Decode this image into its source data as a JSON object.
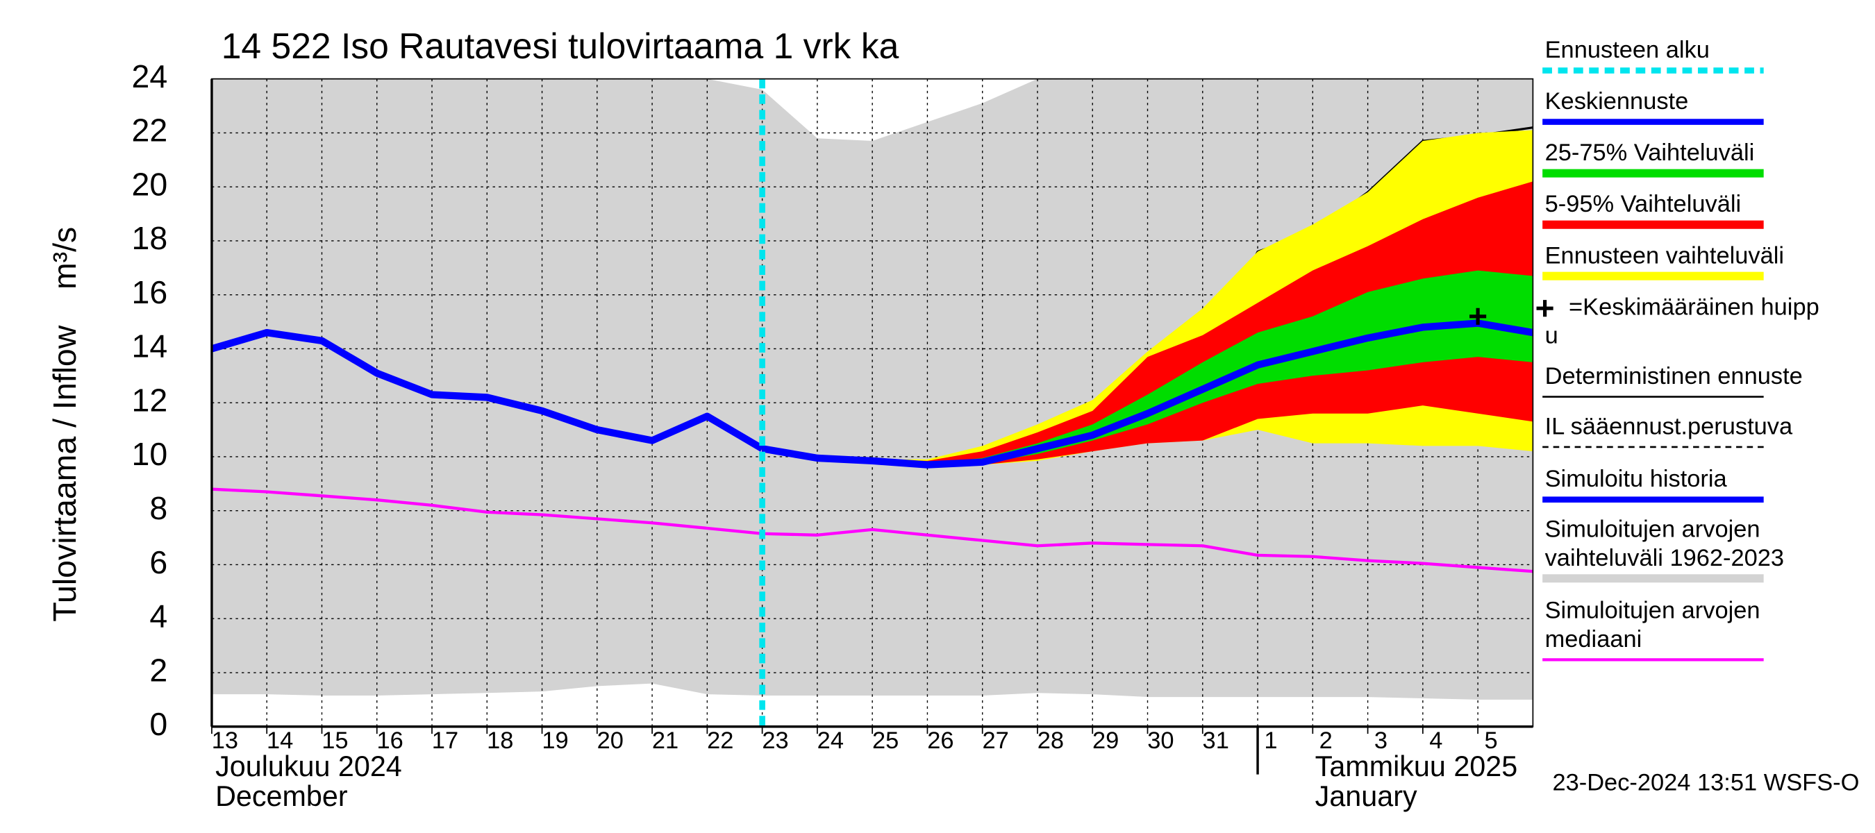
{
  "chart_data": {
    "type": "forecast",
    "title": "14 522 Iso Rautavesi tulovirtaama 1 vrk ka",
    "y_label": "Tulovirtaama / Inflow    m³/s",
    "ylim": [
      0,
      24
    ],
    "yticks": [
      0,
      2,
      4,
      6,
      8,
      10,
      12,
      14,
      16,
      18,
      20,
      22,
      24
    ],
    "xlim": [
      0,
      24
    ],
    "xticks": [
      {
        "value": 0,
        "label": "13"
      },
      {
        "value": 1,
        "label": "14"
      },
      {
        "value": 2,
        "label": "15"
      },
      {
        "value": 3,
        "label": "16"
      },
      {
        "value": 4,
        "label": "17"
      },
      {
        "value": 5,
        "label": "18"
      },
      {
        "value": 6,
        "label": "19"
      },
      {
        "value": 7,
        "label": "20"
      },
      {
        "value": 8,
        "label": "21"
      },
      {
        "value": 9,
        "label": "22"
      },
      {
        "value": 10,
        "label": "23"
      },
      {
        "value": 11,
        "label": "24"
      },
      {
        "value": 12,
        "label": "25"
      },
      {
        "value": 13,
        "label": "26"
      },
      {
        "value": 14,
        "label": "27"
      },
      {
        "value": 15,
        "label": "28"
      },
      {
        "value": 16,
        "label": "29"
      },
      {
        "value": 17,
        "label": "30"
      },
      {
        "value": 18,
        "label": "31"
      },
      {
        "value": 19,
        "label": "1"
      },
      {
        "value": 20,
        "label": "2"
      },
      {
        "value": 21,
        "label": "3"
      },
      {
        "value": 22,
        "label": "4"
      },
      {
        "value": 23,
        "label": "5"
      }
    ],
    "grid": true,
    "months": [
      {
        "lines": [
          "Joulukuu  2024",
          "December"
        ],
        "x": 0
      },
      {
        "lines": [
          "Tammikuu  2025",
          "January"
        ],
        "x": 19
      }
    ],
    "timestamp": "23-Dec-2024 13:51 WSFS-O",
    "series": [
      {
        "name": [
          "Ennusteen alku"
        ],
        "kind": "vline",
        "color": "#00e5ee",
        "x": 10
      },
      {
        "name": [
          "Keskiennuste"
        ],
        "kind": "line",
        "color": "#0000ff",
        "x": [
          10,
          11,
          12,
          13,
          14,
          15,
          16,
          17,
          18,
          19,
          20,
          21,
          22,
          23,
          24
        ],
        "values": [
          10.3,
          9.95,
          9.85,
          9.7,
          9.8,
          10.3,
          10.8,
          11.6,
          12.5,
          13.4,
          13.9,
          14.4,
          14.8,
          14.95,
          14.6
        ]
      },
      {
        "name": [
          "25-75% Vaihteluväli"
        ],
        "kind": "band",
        "color": "#00dd00",
        "x": [
          10,
          11,
          12,
          13,
          14,
          15,
          16,
          17,
          18,
          19,
          20,
          21,
          22,
          23,
          24
        ],
        "upper": [
          10.3,
          9.95,
          9.85,
          9.75,
          9.95,
          10.5,
          11.2,
          12.3,
          13.5,
          14.6,
          15.2,
          16.1,
          16.6,
          16.9,
          16.7
        ],
        "lower": [
          10.3,
          9.9,
          9.8,
          9.65,
          9.75,
          10.1,
          10.6,
          11.2,
          12.0,
          12.7,
          13.0,
          13.2,
          13.5,
          13.7,
          13.5
        ]
      },
      {
        "name": [
          "5-95% Vaihteluväli"
        ],
        "kind": "band",
        "color": "#ff0000",
        "x": [
          10,
          11,
          12,
          13,
          14,
          15,
          16,
          17,
          18,
          19,
          20,
          21,
          22,
          23,
          24
        ],
        "upper": [
          10.3,
          9.95,
          9.9,
          9.85,
          10.2,
          10.9,
          11.7,
          13.7,
          14.5,
          15.7,
          16.9,
          17.8,
          18.8,
          19.6,
          20.2
        ],
        "lower": [
          10.3,
          9.9,
          9.8,
          9.6,
          9.7,
          9.9,
          10.2,
          10.5,
          10.6,
          11.4,
          11.6,
          11.6,
          11.9,
          11.6,
          11.3
        ]
      },
      {
        "name": [
          "Ennusteen vaihteluväli"
        ],
        "kind": "band",
        "color": "#ffff00",
        "x": [
          10,
          11,
          12,
          13,
          14,
          15,
          16,
          17,
          18,
          19,
          20,
          21,
          22,
          23,
          24
        ],
        "upper": [
          10.3,
          10.0,
          9.9,
          9.9,
          10.4,
          11.2,
          12.1,
          13.9,
          15.5,
          17.6,
          18.6,
          19.8,
          21.7,
          22.0,
          22.1
        ],
        "lower": [
          10.3,
          9.9,
          9.8,
          9.6,
          9.7,
          9.85,
          10.2,
          10.5,
          10.6,
          11.0,
          10.5,
          10.5,
          10.4,
          10.4,
          10.2
        ]
      },
      {
        "name": [
          "=Keskimääräinen huipp",
          "u"
        ],
        "kind": "marker",
        "color": "#000000",
        "x": 23,
        "values": [
          15.2
        ]
      },
      {
        "name": [
          "Deterministinen ennuste"
        ],
        "kind": "line",
        "color": "#000000",
        "x": [
          10,
          11,
          12,
          13,
          14,
          15,
          16,
          17,
          18,
          19,
          20,
          21,
          22,
          23,
          24
        ],
        "values": [
          10.3,
          9.95,
          9.85,
          9.7,
          9.8,
          10.1,
          11.0,
          13.3,
          13.5,
          17.6,
          18.3,
          19.8,
          21.7,
          21.9,
          22.2
        ]
      },
      {
        "name": [
          "IL sääennust.perustuva"
        ],
        "kind": "line",
        "dash": true,
        "color": "#000000",
        "x": [
          10,
          11,
          12,
          13,
          14,
          15,
          16,
          17,
          18,
          19,
          20,
          21,
          22,
          23,
          24
        ],
        "values": [
          10.3,
          9.95,
          9.85,
          9.7,
          9.8,
          10.3,
          10.9,
          11.7,
          12.8,
          15.1,
          14.3,
          14.6,
          15.5,
          15.2,
          15.0
        ]
      },
      {
        "name": [
          "Simuloitu historia"
        ],
        "kind": "line",
        "color": "#0000ff",
        "x": [
          0,
          1,
          2,
          3,
          4,
          5,
          6,
          7,
          8,
          9,
          10
        ],
        "values": [
          14.0,
          14.6,
          14.3,
          13.1,
          12.3,
          12.2,
          11.7,
          11.0,
          10.6,
          11.5,
          10.3
        ]
      },
      {
        "name": [
          "Simuloitujen arvojen",
          "vaihteluväli 1962-2023"
        ],
        "kind": "band",
        "color": "#d3d3d3",
        "x": [
          0,
          1,
          2,
          3,
          4,
          5,
          6,
          7,
          8,
          9,
          10,
          11,
          12,
          13,
          14,
          15,
          16,
          17,
          18,
          19,
          20,
          21,
          22,
          23,
          24
        ],
        "upper": [
          24,
          24,
          24,
          24,
          24,
          24,
          24,
          24,
          24,
          24,
          23.6,
          21.8,
          21.7,
          22.4,
          23.1,
          24,
          24,
          24,
          24,
          24,
          24,
          24,
          24,
          24,
          24
        ],
        "lower": [
          1.2,
          1.2,
          1.15,
          1.15,
          1.2,
          1.25,
          1.3,
          1.5,
          1.6,
          1.2,
          1.15,
          1.15,
          1.15,
          1.15,
          1.15,
          1.25,
          1.2,
          1.1,
          1.1,
          1.1,
          1.1,
          1.1,
          1.05,
          1.0,
          1.0
        ]
      },
      {
        "name": [
          "Simuloitujen arvojen",
          "mediaani"
        ],
        "kind": "line",
        "color": "#ff00ff",
        "x": [
          0,
          1,
          2,
          3,
          4,
          5,
          6,
          7,
          8,
          9,
          10,
          11,
          12,
          13,
          14,
          15,
          16,
          17,
          18,
          19,
          20,
          21,
          22,
          23,
          24
        ],
        "values": [
          8.8,
          8.7,
          8.55,
          8.4,
          8.2,
          7.95,
          7.85,
          7.7,
          7.55,
          7.35,
          7.15,
          7.1,
          7.3,
          7.1,
          6.9,
          6.7,
          6.8,
          6.75,
          6.7,
          6.35,
          6.3,
          6.15,
          6.05,
          5.9,
          5.75
        ]
      }
    ]
  }
}
